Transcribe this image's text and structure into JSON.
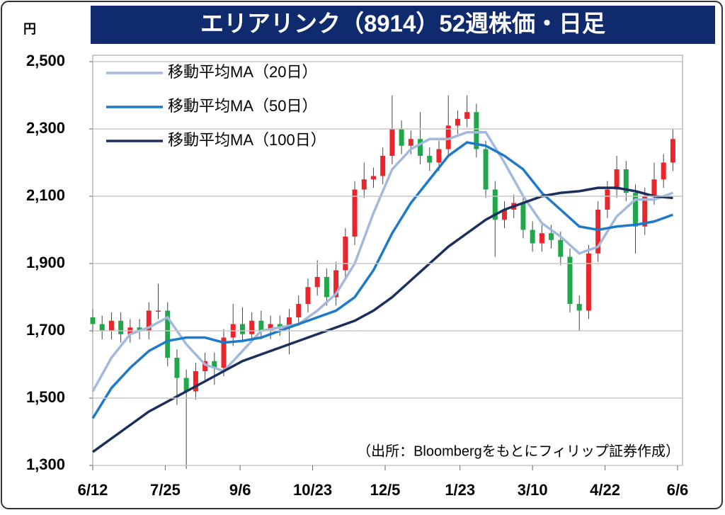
{
  "chart_data": {
    "type": "candlestick",
    "title": "エリアリンク（8914）52週株価・日足",
    "y_unit": "円",
    "note": "（出所：Bloombergをもとにフィリップ証券作成）",
    "up_color": "#e8262b",
    "down_color": "#1fa84a",
    "xlim": [
      0,
      250
    ],
    "xticks": [
      {
        "value": 0,
        "label": "6/12"
      },
      {
        "value": 31,
        "label": "7/25"
      },
      {
        "value": 63,
        "label": "9/6"
      },
      {
        "value": 94,
        "label": "10/23"
      },
      {
        "value": 125,
        "label": "12/5"
      },
      {
        "value": 157,
        "label": "1/23"
      },
      {
        "value": 188,
        "label": "3/10"
      },
      {
        "value": 219,
        "label": "4/22"
      },
      {
        "value": 250,
        "label": "6/6"
      }
    ],
    "ylim": [
      1300,
      2500
    ],
    "yticks": [
      {
        "value": 1300,
        "label": "1,300"
      },
      {
        "value": 1500,
        "label": "1,500"
      },
      {
        "value": 1700,
        "label": "1,700"
      },
      {
        "value": 1900,
        "label": "1,900"
      },
      {
        "value": 2100,
        "label": "2,100"
      },
      {
        "value": 2300,
        "label": "2,300"
      },
      {
        "value": 2500,
        "label": "2,500"
      }
    ],
    "grid": true,
    "candles": {
      "x": [
        0,
        4,
        8,
        12,
        16,
        20,
        24,
        28,
        32,
        36,
        40,
        44,
        48,
        52,
        56,
        60,
        64,
        68,
        72,
        76,
        80,
        84,
        88,
        92,
        96,
        100,
        104,
        108,
        112,
        116,
        120,
        124,
        128,
        132,
        136,
        140,
        144,
        148,
        152,
        156,
        160,
        164,
        168,
        172,
        176,
        180,
        184,
        188,
        192,
        196,
        200,
        204,
        208,
        212,
        216,
        220,
        224,
        228,
        232,
        236,
        240,
        244,
        248
      ],
      "open": [
        1740,
        1720,
        1700,
        1730,
        1690,
        1710,
        1700,
        1760,
        1760,
        1620,
        1560,
        1520,
        1580,
        1610,
        1590,
        1680,
        1720,
        1690,
        1730,
        1700,
        1720,
        1710,
        1740,
        1780,
        1830,
        1860,
        1800,
        1880,
        1980,
        2120,
        2150,
        2160,
        2220,
        2300,
        2250,
        2270,
        2220,
        2200,
        2240,
        2310,
        2330,
        2350,
        2240,
        2120,
        2030,
        2060,
        2080,
        2000,
        1960,
        1990,
        1970,
        1920,
        1780,
        1760,
        1930,
        2060,
        2120,
        2180,
        2110,
        2010,
        2100,
        2150,
        2200
      ],
      "high": [
        1765,
        1745,
        1755,
        1755,
        1735,
        1735,
        1785,
        1840,
        1785,
        1645,
        1585,
        1605,
        1635,
        1635,
        1705,
        1780,
        1770,
        1755,
        1760,
        1745,
        1745,
        1765,
        1805,
        1855,
        1910,
        1885,
        1905,
        2005,
        2145,
        2200,
        2185,
        2245,
        2400,
        2325,
        2295,
        2350,
        2245,
        2265,
        2400,
        2355,
        2400,
        2375,
        2265,
        2145,
        2085,
        2105,
        2105,
        2025,
        2015,
        2015,
        1995,
        1945,
        1805,
        1955,
        2085,
        2145,
        2220,
        2205,
        2135,
        2125,
        2200,
        2225,
        2300
      ],
      "low": [
        1695,
        1675,
        1675,
        1665,
        1665,
        1675,
        1675,
        1735,
        1595,
        1480,
        1290,
        1495,
        1555,
        1540,
        1565,
        1655,
        1665,
        1665,
        1675,
        1675,
        1685,
        1630,
        1715,
        1755,
        1805,
        1775,
        1775,
        1855,
        1955,
        2095,
        2125,
        2135,
        2195,
        2225,
        2225,
        2195,
        2175,
        2175,
        2215,
        2285,
        2305,
        2215,
        2095,
        1920,
        2005,
        2035,
        1975,
        1935,
        1935,
        1945,
        1895,
        1755,
        1700,
        1735,
        1905,
        2035,
        2095,
        2085,
        1930,
        1985,
        2075,
        2125,
        2175
      ],
      "close": [
        1720,
        1700,
        1730,
        1690,
        1710,
        1700,
        1760,
        1760,
        1620,
        1560,
        1520,
        1580,
        1610,
        1590,
        1680,
        1720,
        1690,
        1730,
        1700,
        1720,
        1710,
        1740,
        1780,
        1830,
        1860,
        1800,
        1880,
        1980,
        2120,
        2150,
        2160,
        2220,
        2300,
        2250,
        2270,
        2220,
        2200,
        2240,
        2310,
        2330,
        2350,
        2240,
        2120,
        2030,
        2060,
        2080,
        2000,
        1960,
        1990,
        1970,
        1920,
        1780,
        1760,
        1930,
        2060,
        2120,
        2180,
        2110,
        2010,
        2100,
        2150,
        2200,
        2270
      ]
    },
    "series": [
      {
        "name": "移動平均MA（20日）",
        "color": "#a3b9dc",
        "x": [
          0,
          8,
          16,
          24,
          32,
          40,
          48,
          56,
          64,
          72,
          80,
          88,
          96,
          104,
          112,
          120,
          128,
          136,
          144,
          152,
          160,
          168,
          176,
          184,
          192,
          200,
          208,
          216,
          224,
          232,
          240,
          248
        ],
        "values": [
          1520,
          1620,
          1690,
          1710,
          1740,
          1660,
          1600,
          1580,
          1640,
          1700,
          1710,
          1720,
          1760,
          1810,
          1900,
          2050,
          2180,
          2240,
          2270,
          2270,
          2290,
          2290,
          2200,
          2100,
          2020,
          1980,
          1930,
          1950,
          2040,
          2090,
          2090,
          2110
        ]
      },
      {
        "name": "移動平均MA（50日）",
        "color": "#1f79c9",
        "x": [
          0,
          8,
          16,
          24,
          32,
          40,
          48,
          56,
          64,
          72,
          80,
          88,
          96,
          104,
          112,
          120,
          128,
          136,
          144,
          152,
          160,
          168,
          176,
          184,
          192,
          200,
          208,
          216,
          224,
          232,
          240,
          248
        ],
        "values": [
          1440,
          1530,
          1590,
          1640,
          1670,
          1680,
          1680,
          1665,
          1670,
          1680,
          1700,
          1720,
          1740,
          1760,
          1800,
          1880,
          1990,
          2080,
          2150,
          2220,
          2260,
          2250,
          2220,
          2180,
          2110,
          2060,
          2010,
          2000,
          2010,
          2015,
          2025,
          2045
        ]
      },
      {
        "name": "移動平均MA（100日）",
        "color": "#1b2f5e",
        "x": [
          0,
          8,
          16,
          24,
          32,
          40,
          48,
          56,
          64,
          72,
          80,
          88,
          96,
          104,
          112,
          120,
          128,
          136,
          144,
          152,
          160,
          168,
          176,
          184,
          192,
          200,
          208,
          216,
          224,
          232,
          240,
          248
        ],
        "values": [
          1340,
          1380,
          1420,
          1460,
          1490,
          1520,
          1550,
          1580,
          1610,
          1630,
          1650,
          1670,
          1690,
          1710,
          1730,
          1760,
          1800,
          1850,
          1900,
          1950,
          1990,
          2030,
          2060,
          2080,
          2100,
          2110,
          2115,
          2125,
          2125,
          2115,
          2100,
          2095
        ]
      }
    ]
  }
}
